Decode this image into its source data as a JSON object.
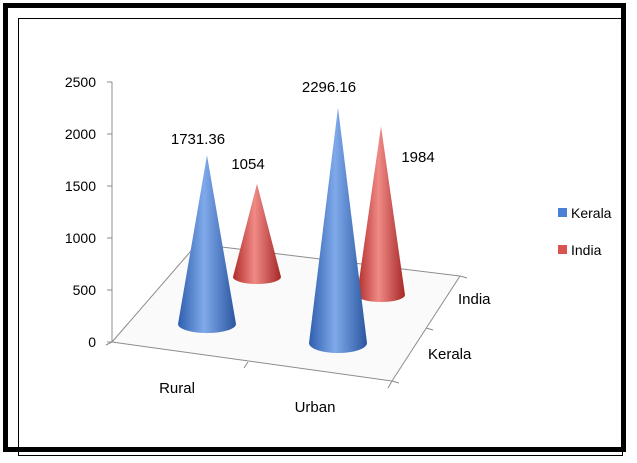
{
  "chart_data": {
    "type": "bar",
    "style": "3d-cone",
    "categories": [
      "Rural",
      "Urban"
    ],
    "depth_categories": [
      "Kerala",
      "India"
    ],
    "series": [
      {
        "name": "Kerala",
        "values": [
          1731.36,
          2296.16
        ],
        "color": "#4a7fd4"
      },
      {
        "name": "India",
        "values": [
          1054,
          1984
        ],
        "color": "#d9534f"
      }
    ],
    "data_labels": [
      "1731.36",
      "1054",
      "2296.16",
      "1984"
    ],
    "y_ticks": [
      "0",
      "500",
      "1000",
      "1500",
      "2000",
      "2500"
    ],
    "ylim": [
      0,
      2500
    ],
    "grid": false,
    "legend_position": "right",
    "title": "",
    "xlabel": "",
    "ylabel": ""
  }
}
